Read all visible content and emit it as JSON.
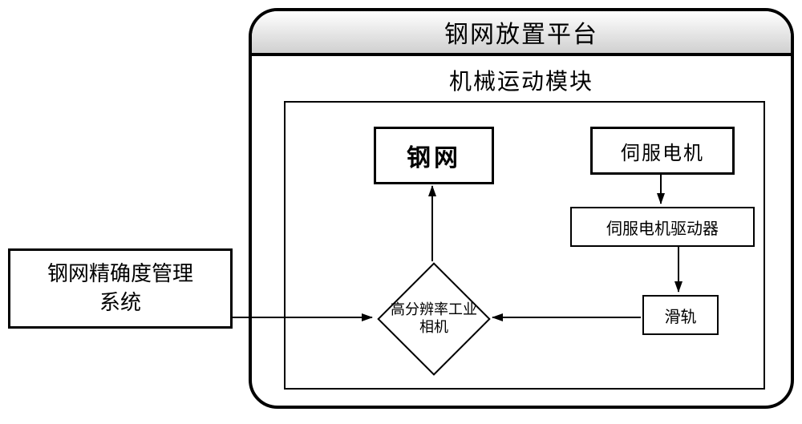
{
  "type": "flowchart",
  "background_color": "#ffffff",
  "stroke_color": "#000000",
  "outer": {
    "title": "钢网放置平台",
    "title_fontsize": 30,
    "border_radius": 36,
    "border_width": 4,
    "header_gradient": [
      "#ffffff",
      "#d0d0d0"
    ]
  },
  "inner": {
    "title": "机械运动模块",
    "title_fontsize": 28,
    "border_width": 2
  },
  "nodes": {
    "steel": {
      "label": "钢网",
      "shape": "rect",
      "fontsize": 30,
      "bold": true,
      "border_width": 3
    },
    "servo": {
      "label": "伺服电机",
      "shape": "rect",
      "fontsize": 24,
      "border_width": 3
    },
    "driver": {
      "label": "伺服电机驱动器",
      "shape": "rect",
      "fontsize": 20,
      "border_width": 2
    },
    "rail": {
      "label": "滑轨",
      "shape": "rect",
      "fontsize": 20,
      "border_width": 2
    },
    "camera": {
      "label": "高分辨率工业\n相机",
      "shape": "diamond",
      "fontsize": 18,
      "border_width": 2
    },
    "mgmt": {
      "label": "钢网精确度管理\n系统",
      "shape": "rect",
      "fontsize": 26,
      "border_width": 3
    }
  },
  "edges": [
    {
      "from": "camera",
      "to": "steel",
      "arrow": true,
      "stroke_width": 2
    },
    {
      "from": "servo",
      "to": "driver",
      "arrow": true,
      "stroke_width": 2
    },
    {
      "from": "driver",
      "to": "rail",
      "arrow": true,
      "stroke_width": 2
    },
    {
      "from": "rail",
      "to": "camera",
      "arrow": true,
      "stroke_width": 2
    },
    {
      "from": "mgmt",
      "to": "camera",
      "arrow": true,
      "stroke_width": 2
    }
  ],
  "arrowhead": {
    "width": 14,
    "height": 10,
    "fill": "#000000"
  }
}
